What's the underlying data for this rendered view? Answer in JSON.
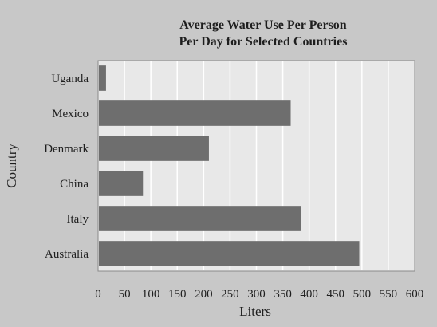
{
  "chart_data": {
    "type": "bar",
    "orientation": "horizontal",
    "title": "Average Water Use Per Person",
    "subtitle": "Per Day for Selected Countries",
    "xlabel": "Liters",
    "ylabel": "Country",
    "categories": [
      "Uganda",
      "Mexico",
      "Denmark",
      "China",
      "Italy",
      "Australia"
    ],
    "values": [
      15,
      365,
      210,
      85,
      385,
      495
    ],
    "xlim": [
      0,
      600
    ],
    "xticks": [
      "0",
      "50",
      "100",
      "150",
      "200",
      "250",
      "300",
      "350",
      "400",
      "450",
      "500",
      "550",
      "600"
    ],
    "grid": "vertical",
    "legend": "none",
    "colors": {
      "background": "#c8c8c8",
      "plot_area": "#e8e8e8",
      "bar": "#6e6e6e",
      "grid": "#ffffff",
      "text": "#1e1e1e"
    }
  }
}
